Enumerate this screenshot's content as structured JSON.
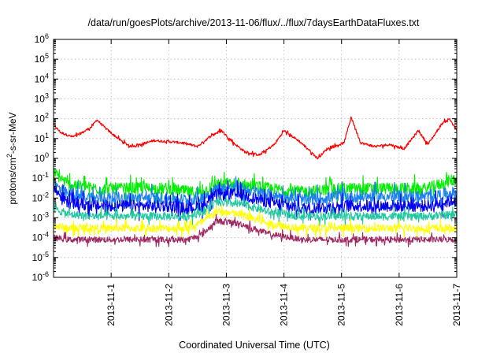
{
  "chart_data": {
    "type": "line",
    "title": "/data/run/goesPlots/archive/2013-11-06/flux/../flux/7daysEarthDataFluxes.txt",
    "xlabel": "Coordinated Universal Time (UTC)",
    "ylabel_parts": [
      "protons/cm",
      "2",
      "-s-sr-MeV"
    ],
    "yscale": "log",
    "ylim": [
      1e-06,
      1000000.0
    ],
    "y_ticks": [
      {
        "base": "10",
        "exp": "-6"
      },
      {
        "base": "10",
        "exp": "-5"
      },
      {
        "base": "10",
        "exp": "-4"
      },
      {
        "base": "10",
        "exp": "-3"
      },
      {
        "base": "10",
        "exp": "-2"
      },
      {
        "base": "10",
        "exp": "-1"
      },
      {
        "base": "10",
        "exp": "0"
      },
      {
        "base": "10",
        "exp": "1"
      },
      {
        "base": "10",
        "exp": "2"
      },
      {
        "base": "10",
        "exp": "3"
      },
      {
        "base": "10",
        "exp": "4"
      },
      {
        "base": "10",
        "exp": "5"
      },
      {
        "base": "10",
        "exp": "6"
      }
    ],
    "xlim": [
      "2013-10-31T00:00",
      "2013-11-07T00:00"
    ],
    "x_ticks": [
      "2013-11-1",
      "2013-11-2",
      "2013-11-3",
      "2013-11-4",
      "2013-11-5",
      "2013-11-6",
      "2013-11-7"
    ],
    "grid": true,
    "series": [
      {
        "color": "#ff0000",
        "noise": 0.06,
        "x": [
          "2013-10-31T00:00",
          "2013-10-31T03:00",
          "2013-10-31T08:00",
          "2013-10-31T12:00",
          "2013-10-31T16:00",
          "2013-10-31T18:00",
          "2013-10-31T22:00",
          "2013-11-01T04:00",
          "2013-11-01T08:00",
          "2013-11-01T12:00",
          "2013-11-01T18:00",
          "2013-11-02T00:00",
          "2013-11-02T06:00",
          "2013-11-02T12:00",
          "2013-11-02T18:00",
          "2013-11-02T22:00",
          "2013-11-03T03:00",
          "2013-11-03T08:00",
          "2013-11-03T14:00",
          "2013-11-03T20:00",
          "2013-11-04T00:00",
          "2013-11-04T06:00",
          "2013-11-04T10:00",
          "2013-11-04T14:00",
          "2013-11-04T18:00",
          "2013-11-04T21:00",
          "2013-11-05T01:00",
          "2013-11-05T04:00",
          "2013-11-05T08:00",
          "2013-11-05T14:00",
          "2013-11-05T20:00",
          "2013-11-06T02:00",
          "2013-11-06T08:00",
          "2013-11-06T12:00",
          "2013-11-06T18:00",
          "2013-11-06T21:00",
          "2013-11-07T00:00"
        ],
        "y": [
          50,
          20,
          12,
          20,
          40,
          90,
          30,
          8,
          4,
          5,
          8,
          7,
          6,
          4,
          15,
          25,
          6,
          2,
          1.5,
          5,
          25,
          8,
          3,
          1,
          3,
          4,
          6,
          120,
          6,
          4,
          5,
          3,
          25,
          5,
          60,
          100,
          25
        ]
      },
      {
        "color": "#00ee00",
        "noise": 0.3,
        "x": [
          "2013-10-31T00:00",
          "2013-10-31T06:00",
          "2013-10-31T18:00",
          "2013-11-01T12:00",
          "2013-11-02T00:00",
          "2013-11-02T08:00",
          "2013-11-02T14:00",
          "2013-11-02T20:00",
          "2013-11-03T06:00",
          "2013-11-03T18:00",
          "2013-11-04T08:00",
          "2013-11-05T00:00",
          "2013-11-05T12:00",
          "2013-11-06T00:00",
          "2013-11-06T12:00",
          "2013-11-07T00:00"
        ],
        "y": [
          0.2,
          0.05,
          0.03,
          0.03,
          0.03,
          0.02,
          0.02,
          0.05,
          0.05,
          0.03,
          0.02,
          0.03,
          0.03,
          0.03,
          0.03,
          0.1
        ]
      },
      {
        "color": "#1a7ff0",
        "noise": 0.3,
        "x": [
          "2013-10-31T00:00",
          "2013-10-31T06:00",
          "2013-10-31T18:00",
          "2013-11-01T12:00",
          "2013-11-02T00:00",
          "2013-11-02T08:00",
          "2013-11-02T14:00",
          "2013-11-02T20:00",
          "2013-11-03T06:00",
          "2013-11-03T18:00",
          "2013-11-04T08:00",
          "2013-11-05T00:00",
          "2013-11-05T12:00",
          "2013-11-06T00:00",
          "2013-11-06T12:00",
          "2013-11-07T00:00"
        ],
        "y": [
          0.05,
          0.015,
          0.01,
          0.01,
          0.01,
          0.008,
          0.01,
          0.03,
          0.03,
          0.015,
          0.008,
          0.012,
          0.012,
          0.012,
          0.012,
          0.02
        ]
      },
      {
        "color": "#0000ee",
        "noise": 0.3,
        "x": [
          "2013-10-31T00:00",
          "2013-10-31T06:00",
          "2013-10-31T18:00",
          "2013-11-01T12:00",
          "2013-11-02T00:00",
          "2013-11-02T08:00",
          "2013-11-02T14:00",
          "2013-11-02T20:00",
          "2013-11-03T06:00",
          "2013-11-03T18:00",
          "2013-11-04T08:00",
          "2013-11-05T00:00",
          "2013-11-05T12:00",
          "2013-11-06T00:00",
          "2013-11-06T12:00",
          "2013-11-07T00:00"
        ],
        "y": [
          0.03,
          0.006,
          0.004,
          0.004,
          0.004,
          0.003,
          0.004,
          0.015,
          0.015,
          0.006,
          0.003,
          0.004,
          0.004,
          0.004,
          0.004,
          0.008
        ]
      },
      {
        "color": "#20c8a0",
        "noise": 0.2,
        "x": [
          "2013-10-31T00:00",
          "2013-10-31T06:00",
          "2013-10-31T18:00",
          "2013-11-01T12:00",
          "2013-11-02T00:00",
          "2013-11-02T08:00",
          "2013-11-02T14:00",
          "2013-11-02T20:00",
          "2013-11-03T06:00",
          "2013-11-03T18:00",
          "2013-11-04T08:00",
          "2013-11-05T00:00",
          "2013-11-05T12:00",
          "2013-11-06T00:00",
          "2013-11-06T12:00",
          "2013-11-07T00:00"
        ],
        "y": [
          0.003,
          0.0015,
          0.0012,
          0.0012,
          0.0012,
          0.0012,
          0.002,
          0.006,
          0.005,
          0.002,
          0.0012,
          0.0012,
          0.0012,
          0.0012,
          0.0012,
          0.0015
        ]
      },
      {
        "color": "#ffff00",
        "noise": 0.2,
        "x": [
          "2013-10-31T00:00",
          "2013-10-31T06:00",
          "2013-10-31T18:00",
          "2013-11-01T12:00",
          "2013-11-02T00:00",
          "2013-11-02T08:00",
          "2013-11-02T14:00",
          "2013-11-02T20:00",
          "2013-11-03T06:00",
          "2013-11-03T18:00",
          "2013-11-04T08:00",
          "2013-11-05T00:00",
          "2013-11-05T12:00",
          "2013-11-06T00:00",
          "2013-11-06T12:00",
          "2013-11-07T00:00"
        ],
        "y": [
          0.0004,
          0.0003,
          0.0003,
          0.0003,
          0.0003,
          0.0003,
          0.0006,
          0.002,
          0.0015,
          0.0005,
          0.0003,
          0.0003,
          0.0003,
          0.0003,
          0.0003,
          0.0003
        ]
      },
      {
        "color": "#a02860",
        "noise": 0.15,
        "x": [
          "2013-10-31T00:00",
          "2013-10-31T06:00",
          "2013-10-31T18:00",
          "2013-11-01T12:00",
          "2013-11-02T00:00",
          "2013-11-02T08:00",
          "2013-11-02T14:00",
          "2013-11-02T20:00",
          "2013-11-03T06:00",
          "2013-11-03T18:00",
          "2013-11-04T08:00",
          "2013-11-05T00:00",
          "2013-11-05T12:00",
          "2013-11-06T00:00",
          "2013-11-06T12:00",
          "2013-11-07T00:00"
        ],
        "y": [
          0.0001,
          8e-05,
          8e-05,
          8e-05,
          8e-05,
          8e-05,
          0.00015,
          0.0007,
          0.0005,
          0.00015,
          8e-05,
          8e-05,
          8e-05,
          8e-05,
          8e-05,
          8e-05
        ]
      }
    ]
  }
}
